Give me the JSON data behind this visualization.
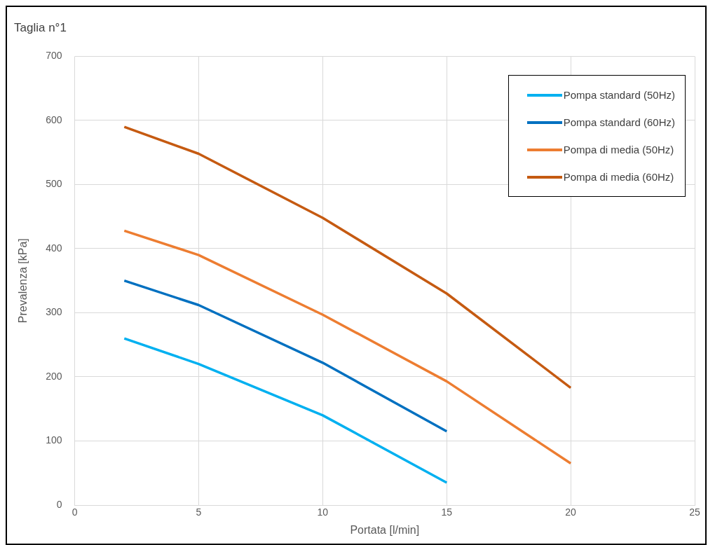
{
  "chart_data": {
    "type": "line",
    "title": "Taglia n°1",
    "xlabel": "Portata [l/min]",
    "ylabel": "Prevalenza [kPa]",
    "xlim": [
      0,
      25
    ],
    "xticks": [
      0,
      5,
      10,
      15,
      20,
      25
    ],
    "ylim": [
      0,
      700
    ],
    "yticks": [
      0,
      100,
      200,
      300,
      400,
      500,
      600,
      700
    ],
    "grid": true,
    "legend": "top right",
    "marker": "none",
    "line_style": "solid",
    "series": [
      {
        "name": "Pompa standard (50Hz)",
        "color": "#00b0f0",
        "x": [
          2,
          5,
          10,
          15
        ],
        "values": [
          260,
          220,
          140,
          35
        ]
      },
      {
        "name": "Pompa standard (60Hz)",
        "color": "#0070c0",
        "x": [
          2,
          5,
          10,
          15
        ],
        "values": [
          350,
          312,
          222,
          115
        ]
      },
      {
        "name": "Pompa di media (50Hz)",
        "color": "#ed7d31",
        "x": [
          2,
          5,
          10,
          15,
          20
        ],
        "values": [
          428,
          390,
          297,
          193,
          65
        ]
      },
      {
        "name": "Pompa di media (60Hz)",
        "color": "#c55a11",
        "x": [
          2,
          5,
          10,
          15,
          20
        ],
        "values": [
          590,
          548,
          448,
          330,
          183
        ]
      }
    ]
  }
}
